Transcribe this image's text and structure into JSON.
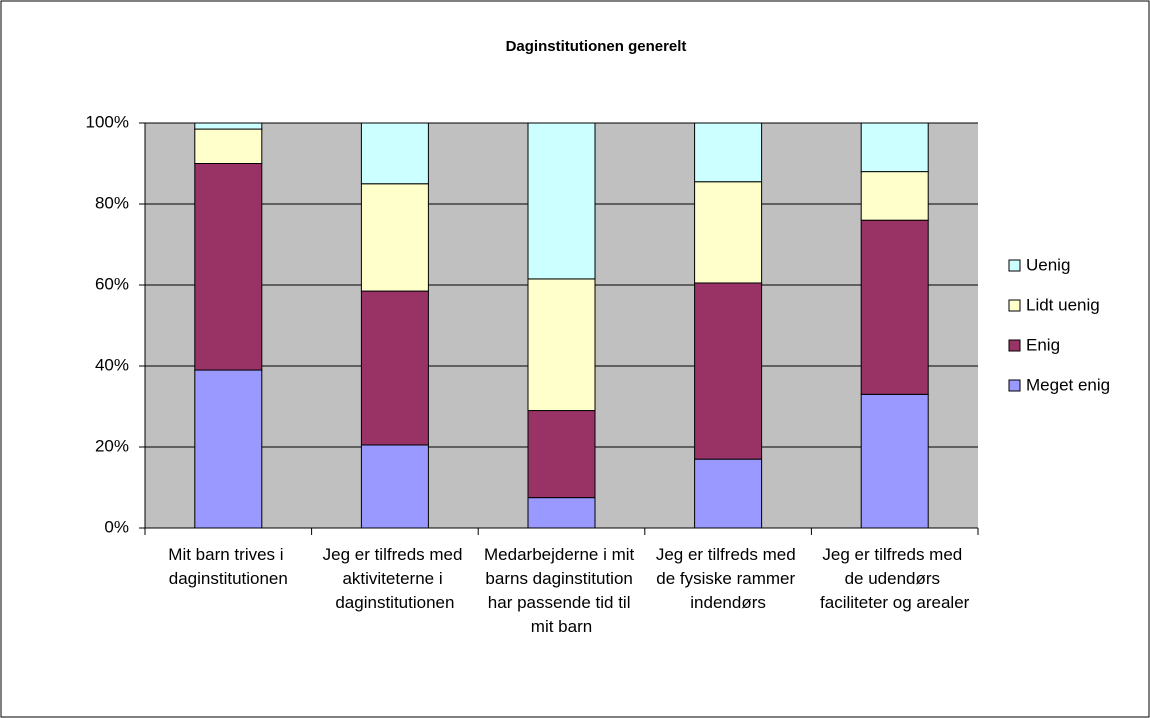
{
  "chart_data": {
    "type": "stacked_bar",
    "title": "Daginstitutionen generelt",
    "categories": [
      "Mit barn trives i daginstitutionen",
      "Jeg er tilfreds med aktiviteterne i daginstitutionen",
      "Medarbejderne i mit barns daginstitution har passende tid til mit barn",
      "Jeg er tilfreds med de fysiske rammer indendørs",
      "Jeg er tilfreds med de udendørs faciliteter og arealer"
    ],
    "series": [
      {
        "name": "Meget enig",
        "color": "#9999ff",
        "values": [
          39,
          20.5,
          7.5,
          17,
          33
        ]
      },
      {
        "name": "Enig",
        "color": "#993366",
        "values": [
          51,
          38,
          21.5,
          43.5,
          43
        ]
      },
      {
        "name": "Lidt uenig",
        "color": "#ffffcc",
        "values": [
          8.5,
          26.5,
          32.5,
          25,
          12
        ]
      },
      {
        "name": "Uenig",
        "color": "#ccffff",
        "values": [
          1.5,
          15,
          38.5,
          14.5,
          12
        ]
      }
    ],
    "ylim": [
      0,
      100
    ],
    "yticks": [
      {
        "value": 0,
        "label": "0%"
      },
      {
        "value": 20,
        "label": "20%"
      },
      {
        "value": 40,
        "label": "40%"
      },
      {
        "value": 60,
        "label": "60%"
      },
      {
        "value": 80,
        "label": "80%"
      },
      {
        "value": 100,
        "label": "100%"
      }
    ],
    "grid": true,
    "legend": "right"
  }
}
